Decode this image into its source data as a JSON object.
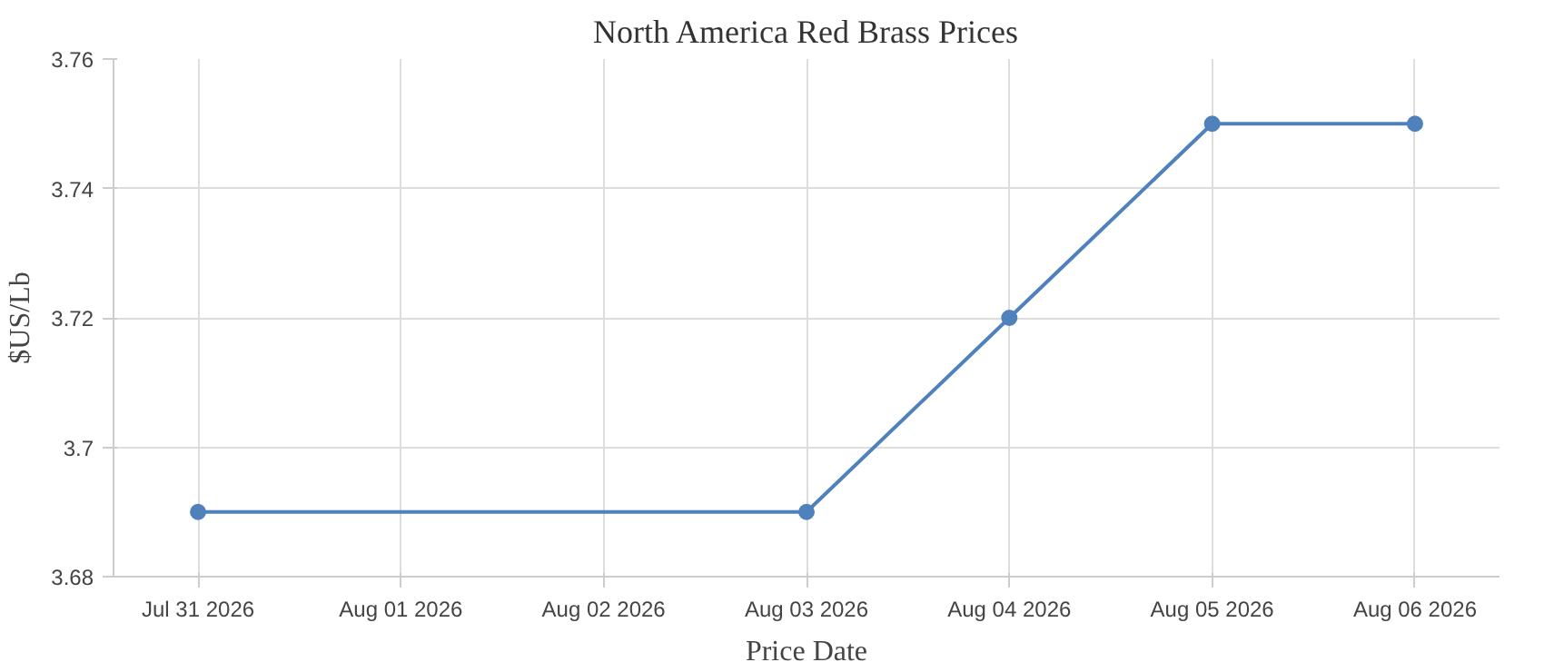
{
  "chart_data": {
    "type": "line",
    "title": "North America Red Brass Prices",
    "xlabel": "Price Date",
    "ylabel": "$US/Lb",
    "x": [
      "2026-07-31",
      "2026-08-03",
      "2026-08-04",
      "2026-08-05",
      "2026-08-06"
    ],
    "series": [
      {
        "color": "#4f81bc",
        "values": [
          3.69,
          3.69,
          3.72,
          3.75,
          3.75
        ]
      }
    ],
    "xlim": [
      "2026-07-30T14:00",
      "2026-08-06T10:00"
    ],
    "xticks": [
      {
        "value": "2026-07-31",
        "label": "Jul 31 2026"
      },
      {
        "value": "2026-08-01",
        "label": "Aug 01 2026"
      },
      {
        "value": "2026-08-02",
        "label": "Aug 02 2026"
      },
      {
        "value": "2026-08-03",
        "label": "Aug 03 2026"
      },
      {
        "value": "2026-08-04",
        "label": "Aug 04 2026"
      },
      {
        "value": "2026-08-05",
        "label": "Aug 05 2026"
      },
      {
        "value": "2026-08-06",
        "label": "Aug 06 2026"
      }
    ],
    "ylim": [
      3.68,
      3.76
    ],
    "yticks": [
      3.68,
      3.7,
      3.72,
      3.74,
      3.76
    ],
    "grid": true,
    "marker": "circle",
    "line_style": "solid"
  }
}
